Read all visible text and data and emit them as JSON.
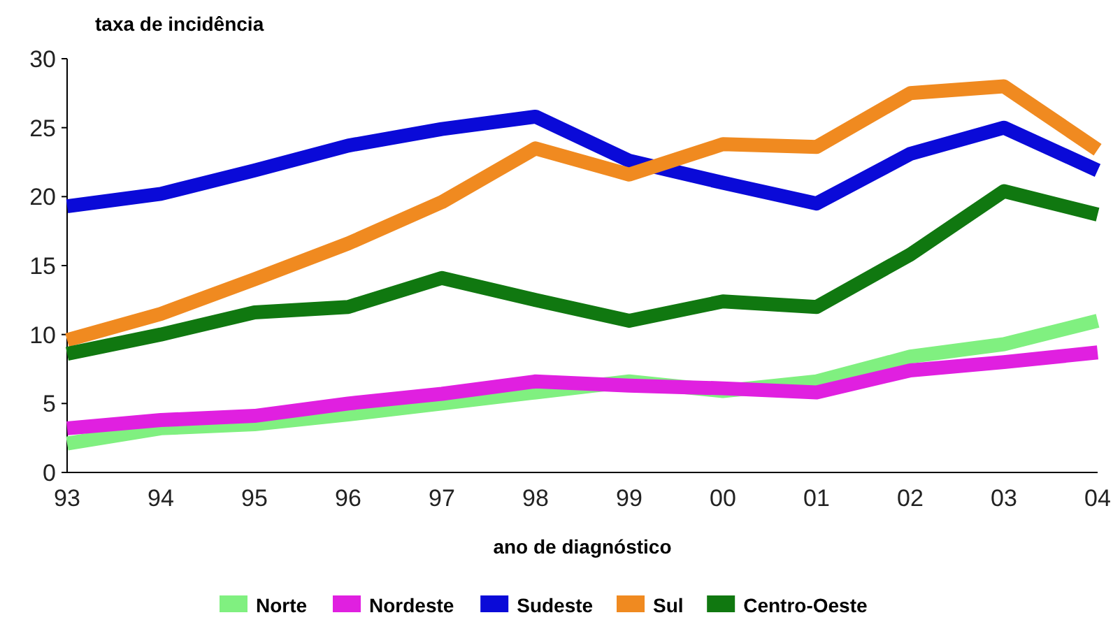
{
  "chart_data": {
    "type": "line",
    "xlabel": "ano de diagnóstico",
    "ylabel": "taxa de incidência",
    "categories": [
      "93",
      "94",
      "95",
      "96",
      "97",
      "98",
      "99",
      "00",
      "01",
      "02",
      "03",
      "04"
    ],
    "ylim": [
      0,
      30
    ],
    "yticks": [
      0,
      5,
      10,
      15,
      20,
      25,
      30
    ],
    "grid": false,
    "legend": "bottom",
    "line_style": "solid",
    "series": [
      {
        "name": "Norte",
        "color": "#80f080",
        "values": [
          2.1,
          3.2,
          3.5,
          4.2,
          5.0,
          5.8,
          6.6,
          5.9,
          6.6,
          8.4,
          9.3,
          11.0
        ]
      },
      {
        "name": "Nordeste",
        "color": "#e020e0",
        "values": [
          3.2,
          3.8,
          4.1,
          5.0,
          5.7,
          6.6,
          6.3,
          6.1,
          5.8,
          7.4,
          8.0,
          8.7
        ]
      },
      {
        "name": "Sudeste",
        "color": "#0a0ad8",
        "values": [
          19.3,
          20.2,
          21.9,
          23.7,
          24.9,
          25.8,
          22.6,
          21.0,
          19.5,
          23.1,
          25.0,
          21.9
        ]
      },
      {
        "name": "Sul",
        "color": "#f08a20",
        "values": [
          9.6,
          11.5,
          14.0,
          16.6,
          19.6,
          23.5,
          21.6,
          23.8,
          23.6,
          27.5,
          28.0,
          23.4
        ]
      },
      {
        "name": "Centro-Oeste",
        "color": "#107810",
        "values": [
          8.6,
          10.0,
          11.6,
          12.0,
          14.1,
          12.5,
          11.0,
          12.4,
          12.0,
          15.8,
          20.4,
          18.7
        ]
      }
    ]
  }
}
